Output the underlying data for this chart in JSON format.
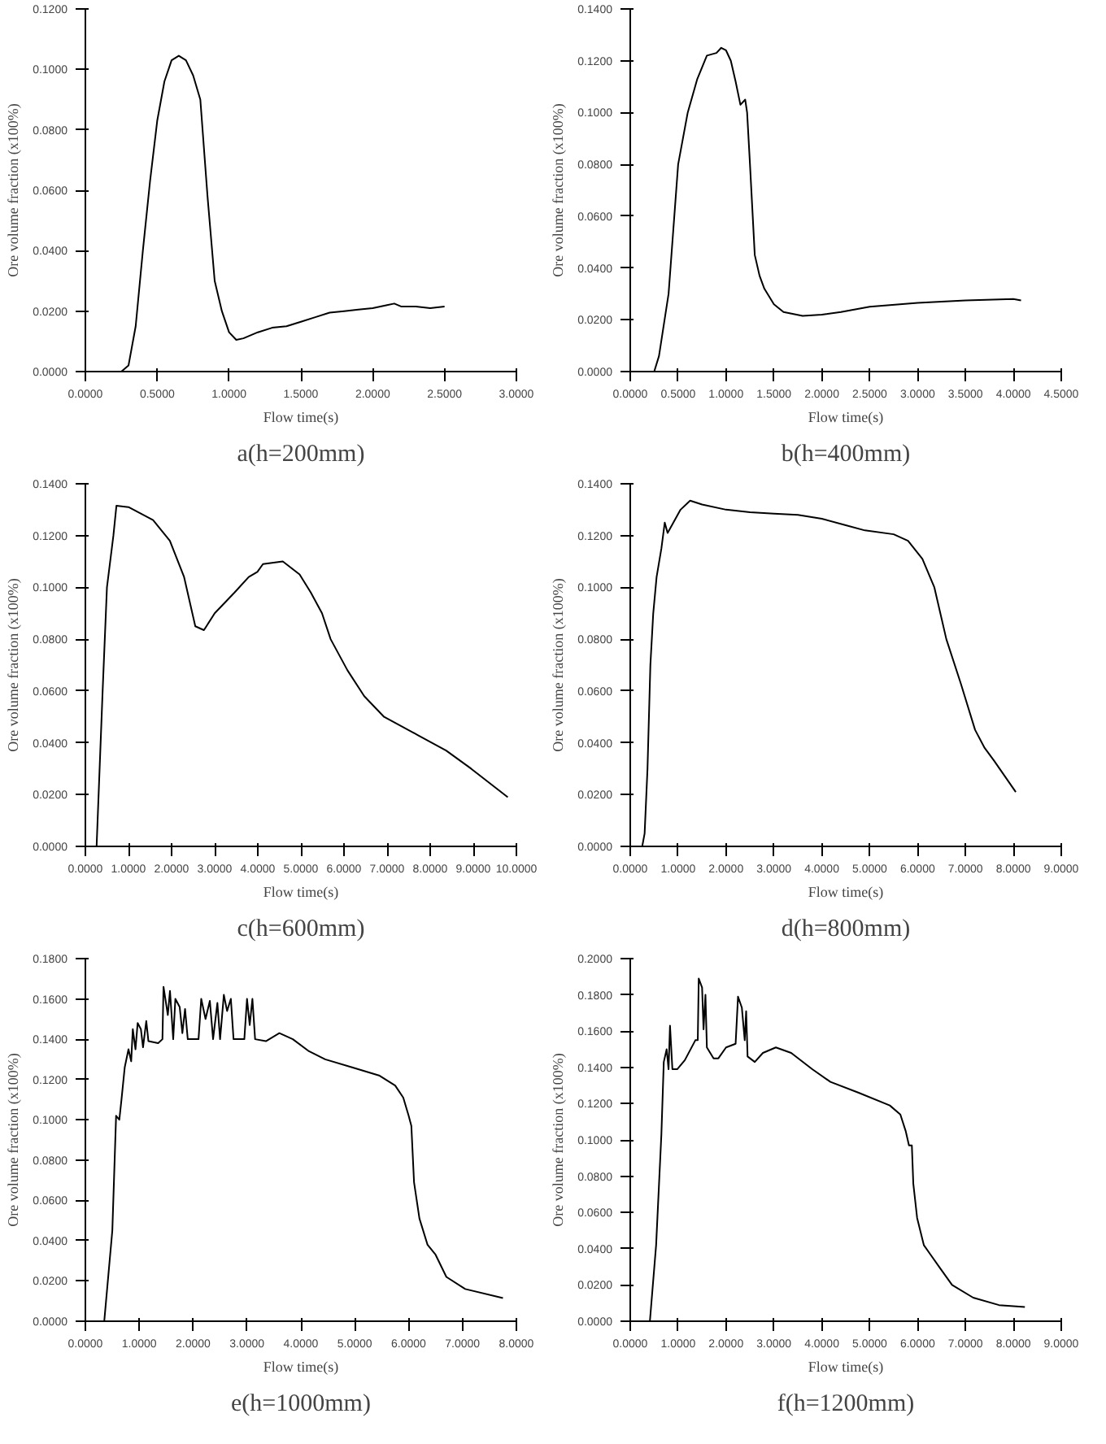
{
  "chart_data": [
    {
      "type": "line",
      "title": "a(h=200mm)",
      "xlabel": "Flow time(s)",
      "ylabel": "Ore volume fraction (x100%)",
      "grid": false,
      "color": "#000000",
      "x": [
        0.25,
        0.3,
        0.35,
        0.4,
        0.45,
        0.5,
        0.55,
        0.6,
        0.65,
        0.7,
        0.75,
        0.8,
        0.85,
        0.9,
        0.95,
        1.0,
        1.05,
        1.1,
        1.2,
        1.3,
        1.4,
        1.5,
        1.6,
        1.7,
        1.8,
        1.9,
        2.0,
        2.1,
        2.15,
        2.2,
        2.3,
        2.4,
        2.5
      ],
      "values": [
        0,
        0.002,
        0.015,
        0.04,
        0.063,
        0.083,
        0.096,
        0.103,
        0.1045,
        0.103,
        0.098,
        0.09,
        0.058,
        0.03,
        0.02,
        0.013,
        0.0105,
        0.011,
        0.013,
        0.0145,
        0.015,
        0.0165,
        0.018,
        0.0195,
        0.02,
        0.0205,
        0.021,
        0.022,
        0.0225,
        0.0215,
        0.0215,
        0.021,
        0.0215
      ],
      "xlim": [
        0,
        3
      ],
      "ylim": [
        0,
        0.12
      ],
      "xticks": [
        {
          "value": 0,
          "label": "0.0000"
        },
        {
          "value": 0.5,
          "label": "0.5000"
        },
        {
          "value": 1,
          "label": "1.0000"
        },
        {
          "value": 1.5,
          "label": "1.5000"
        },
        {
          "value": 2,
          "label": "2.0000"
        },
        {
          "value": 2.5,
          "label": "2.5000"
        },
        {
          "value": 3,
          "label": "3.0000"
        }
      ],
      "yticks": [
        {
          "value": 0,
          "label": "0.0000"
        },
        {
          "value": 0.02,
          "label": "0.0200"
        },
        {
          "value": 0.04,
          "label": "0.0400"
        },
        {
          "value": 0.06,
          "label": "0.0600"
        },
        {
          "value": 0.08,
          "label": "0.0800"
        },
        {
          "value": 0.1,
          "label": "0.1000"
        },
        {
          "value": 0.12,
          "label": "0.1200"
        }
      ]
    },
    {
      "type": "line",
      "title": "b(h=400mm)",
      "xlabel": "Flow time(s)",
      "ylabel": "Ore volume fraction (x100%)",
      "grid": false,
      "color": "#000000",
      "x": [
        0.25,
        0.3,
        0.4,
        0.45,
        0.5,
        0.6,
        0.7,
        0.8,
        0.9,
        0.95,
        1.0,
        1.05,
        1.1,
        1.15,
        1.2,
        1.22,
        1.25,
        1.3,
        1.35,
        1.4,
        1.5,
        1.6,
        1.8,
        2.0,
        2.2,
        2.5,
        3.0,
        3.5,
        4.0,
        4.08
      ],
      "values": [
        0,
        0.006,
        0.03,
        0.055,
        0.08,
        0.1,
        0.113,
        0.122,
        0.123,
        0.125,
        0.124,
        0.12,
        0.112,
        0.103,
        0.105,
        0.1,
        0.08,
        0.045,
        0.037,
        0.032,
        0.026,
        0.023,
        0.0215,
        0.022,
        0.023,
        0.025,
        0.0265,
        0.0275,
        0.028,
        0.0275
      ],
      "xlim": [
        0,
        4.5
      ],
      "ylim": [
        0,
        0.14
      ],
      "xticks": [
        {
          "value": 0,
          "label": "0.0000"
        },
        {
          "value": 0.5,
          "label": "0.5000"
        },
        {
          "value": 1,
          "label": "1.0000"
        },
        {
          "value": 1.5,
          "label": "1.5000"
        },
        {
          "value": 2,
          "label": "2.0000"
        },
        {
          "value": 2.5,
          "label": "2.5000"
        },
        {
          "value": 3,
          "label": "3.0000"
        },
        {
          "value": 3.5,
          "label": "3.5000"
        },
        {
          "value": 4,
          "label": "4.0000"
        },
        {
          "value": 4.5,
          "label": "4.5000"
        }
      ],
      "yticks": [
        {
          "value": 0,
          "label": "0.0000"
        },
        {
          "value": 0.02,
          "label": "0.0200"
        },
        {
          "value": 0.04,
          "label": "0.0400"
        },
        {
          "value": 0.06,
          "label": "0.0600"
        },
        {
          "value": 0.08,
          "label": "0.0800"
        },
        {
          "value": 0.1,
          "label": "0.1000"
        },
        {
          "value": 0.12,
          "label": "0.1200"
        },
        {
          "value": 0.14,
          "label": "0.1400"
        }
      ]
    },
    {
      "type": "line",
      "title": "c(h=600mm)",
      "xlabel": "Flow time(s)",
      "ylabel": "Ore volume fraction (x100%)",
      "grid": false,
      "color": "#000000",
      "x": [
        0.26,
        0.4,
        0.5,
        0.65,
        0.72,
        1.0,
        1.57,
        1.96,
        2.29,
        2.55,
        2.75,
        3.0,
        3.46,
        3.79,
        3.99,
        4.12,
        4.58,
        4.97,
        5.23,
        5.49,
        5.69,
        6.08,
        6.47,
        6.93,
        7.71,
        8.37,
        8.95,
        9.8
      ],
      "values": [
        0,
        0.06,
        0.1,
        0.12,
        0.1315,
        0.131,
        0.126,
        0.118,
        0.104,
        0.085,
        0.0835,
        0.09,
        0.098,
        0.104,
        0.106,
        0.109,
        0.11,
        0.105,
        0.098,
        0.09,
        0.08,
        0.068,
        0.058,
        0.05,
        0.043,
        0.037,
        0.03,
        0.019
      ],
      "xlim": [
        0,
        10
      ],
      "ylim": [
        0,
        0.14
      ],
      "xticks": [
        {
          "value": 0,
          "label": "0.0000"
        },
        {
          "value": 1,
          "label": "1.0000"
        },
        {
          "value": 2,
          "label": "2.0000"
        },
        {
          "value": 3,
          "label": "3.0000"
        },
        {
          "value": 4,
          "label": "4.0000"
        },
        {
          "value": 5,
          "label": "5.0000"
        },
        {
          "value": 6,
          "label": "6.0000"
        },
        {
          "value": 7,
          "label": "7.0000"
        },
        {
          "value": 8,
          "label": "8.0000"
        },
        {
          "value": 9,
          "label": "9.0000"
        },
        {
          "value": 10,
          "label": "10.0000"
        }
      ],
      "yticks": [
        {
          "value": 0,
          "label": "0.0000"
        },
        {
          "value": 0.02,
          "label": "0.0200"
        },
        {
          "value": 0.04,
          "label": "0.0400"
        },
        {
          "value": 0.06,
          "label": "0.0600"
        },
        {
          "value": 0.08,
          "label": "0.0800"
        },
        {
          "value": 0.1,
          "label": "0.1000"
        },
        {
          "value": 0.12,
          "label": "0.1200"
        },
        {
          "value": 0.14,
          "label": "0.1400"
        }
      ]
    },
    {
      "type": "line",
      "title": "d(h=800mm)",
      "xlabel": "Flow time(s)",
      "ylabel": "Ore volume fraction (x100%)",
      "grid": false,
      "color": "#000000",
      "x": [
        0.25,
        0.3,
        0.36,
        0.42,
        0.48,
        0.55,
        0.65,
        0.72,
        0.78,
        0.9,
        1.05,
        1.25,
        1.5,
        2.0,
        2.5,
        3.0,
        3.5,
        4.0,
        4.5,
        4.9,
        5.5,
        5.8,
        6.1,
        6.35,
        6.6,
        6.9,
        7.2,
        7.4,
        7.6,
        8.05
      ],
      "values": [
        0,
        0.005,
        0.03,
        0.07,
        0.09,
        0.104,
        0.115,
        0.125,
        0.121,
        0.125,
        0.13,
        0.1335,
        0.132,
        0.13,
        0.129,
        0.1285,
        0.128,
        0.1265,
        0.124,
        0.122,
        0.1205,
        0.118,
        0.111,
        0.1,
        0.08,
        0.063,
        0.045,
        0.038,
        0.033,
        0.021
      ],
      "xlim": [
        0,
        9
      ],
      "ylim": [
        0,
        0.14
      ],
      "xticks": [
        {
          "value": 0,
          "label": "0.0000"
        },
        {
          "value": 1,
          "label": "1.0000"
        },
        {
          "value": 2,
          "label": "2.0000"
        },
        {
          "value": 3,
          "label": "3.0000"
        },
        {
          "value": 4,
          "label": "4.0000"
        },
        {
          "value": 5,
          "label": "5.0000"
        },
        {
          "value": 6,
          "label": "6.0000"
        },
        {
          "value": 7,
          "label": "7.0000"
        },
        {
          "value": 8,
          "label": "8.0000"
        },
        {
          "value": 9,
          "label": "9.0000"
        }
      ],
      "yticks": [
        {
          "value": 0,
          "label": "0.0000"
        },
        {
          "value": 0.02,
          "label": "0.0200"
        },
        {
          "value": 0.04,
          "label": "0.0400"
        },
        {
          "value": 0.06,
          "label": "0.0600"
        },
        {
          "value": 0.08,
          "label": "0.0800"
        },
        {
          "value": 0.1,
          "label": "0.1000"
        },
        {
          "value": 0.12,
          "label": "0.1200"
        },
        {
          "value": 0.14,
          "label": "0.1400"
        }
      ]
    },
    {
      "type": "line",
      "title": "e(h=1000mm)",
      "xlabel": "Flow time(s)",
      "ylabel": "Ore volume fraction (x100%)",
      "grid": false,
      "color": "#000000",
      "x": [
        0.35,
        0.5,
        0.57,
        0.63,
        0.67,
        0.73,
        0.8,
        0.85,
        0.88,
        0.93,
        0.97,
        1.03,
        1.07,
        1.13,
        1.17,
        1.35,
        1.43,
        1.45,
        1.53,
        1.57,
        1.63,
        1.67,
        1.75,
        1.8,
        1.85,
        1.9,
        2.1,
        2.15,
        2.23,
        2.31,
        2.37,
        2.45,
        2.5,
        2.57,
        2.63,
        2.7,
        2.75,
        2.95,
        3.0,
        3.05,
        3.1,
        3.15,
        3.35,
        3.6,
        3.85,
        4.15,
        4.45,
        4.95,
        5.45,
        5.75,
        5.9,
        6.0,
        6.05,
        6.1,
        6.2,
        6.35,
        6.5,
        6.7,
        7.05,
        7.75
      ],
      "values": [
        0,
        0.045,
        0.102,
        0.1,
        0.11,
        0.126,
        0.135,
        0.129,
        0.145,
        0.135,
        0.148,
        0.145,
        0.136,
        0.149,
        0.139,
        0.138,
        0.14,
        0.166,
        0.152,
        0.164,
        0.14,
        0.16,
        0.156,
        0.143,
        0.155,
        0.14,
        0.14,
        0.16,
        0.15,
        0.159,
        0.14,
        0.158,
        0.14,
        0.162,
        0.154,
        0.16,
        0.14,
        0.14,
        0.16,
        0.147,
        0.16,
        0.14,
        0.139,
        0.143,
        0.14,
        0.134,
        0.13,
        0.126,
        0.122,
        0.117,
        0.111,
        0.102,
        0.097,
        0.069,
        0.051,
        0.038,
        0.033,
        0.022,
        0.016,
        0.0115
      ],
      "xlim": [
        0,
        8
      ],
      "ylim": [
        0,
        0.18
      ],
      "xticks": [
        {
          "value": 0,
          "label": "0.0000"
        },
        {
          "value": 1,
          "label": "1.0000"
        },
        {
          "value": 2,
          "label": "2.0000"
        },
        {
          "value": 3,
          "label": "3.0000"
        },
        {
          "value": 4,
          "label": "4.0000"
        },
        {
          "value": 5,
          "label": "5.0000"
        },
        {
          "value": 6,
          "label": "6.0000"
        },
        {
          "value": 7,
          "label": "7.0000"
        },
        {
          "value": 8,
          "label": "8.0000"
        }
      ],
      "yticks": [
        {
          "value": 0,
          "label": "0.0000"
        },
        {
          "value": 0.02,
          "label": "0.0200"
        },
        {
          "value": 0.04,
          "label": "0.0400"
        },
        {
          "value": 0.06,
          "label": "0.0600"
        },
        {
          "value": 0.08,
          "label": "0.0800"
        },
        {
          "value": 0.1,
          "label": "0.1000"
        },
        {
          "value": 0.12,
          "label": "0.1200"
        },
        {
          "value": 0.14,
          "label": "0.1400"
        },
        {
          "value": 0.16,
          "label": "0.1600"
        },
        {
          "value": 0.18,
          "label": "0.1800"
        }
      ]
    },
    {
      "type": "line",
      "title": "f(h=1200mm)",
      "xlabel": "Flow time(s)",
      "ylabel": "Ore volume fraction (x100%)",
      "grid": false,
      "color": "#000000",
      "x": [
        0.41,
        0.54,
        0.65,
        0.7,
        0.76,
        0.8,
        0.83,
        0.88,
        0.98,
        1.14,
        1.36,
        1.41,
        1.43,
        1.5,
        1.53,
        1.57,
        1.6,
        1.74,
        1.84,
        2.0,
        2.2,
        2.25,
        2.33,
        2.39,
        2.42,
        2.45,
        2.6,
        2.77,
        3.04,
        3.36,
        3.8,
        4.18,
        4.77,
        5.42,
        5.64,
        5.75,
        5.82,
        5.88,
        5.91,
        5.99,
        6.13,
        6.29,
        6.45,
        6.72,
        7.16,
        7.7,
        8.24
      ],
      "values": [
        0,
        0.042,
        0.103,
        0.143,
        0.15,
        0.139,
        0.163,
        0.139,
        0.139,
        0.144,
        0.155,
        0.155,
        0.189,
        0.184,
        0.161,
        0.18,
        0.151,
        0.145,
        0.145,
        0.151,
        0.153,
        0.179,
        0.173,
        0.155,
        0.171,
        0.146,
        0.143,
        0.148,
        0.151,
        0.148,
        0.139,
        0.132,
        0.126,
        0.119,
        0.114,
        0.105,
        0.097,
        0.097,
        0.076,
        0.057,
        0.042,
        0.036,
        0.03,
        0.02,
        0.013,
        0.0089,
        0.0078
      ],
      "xlim": [
        0,
        9
      ],
      "ylim": [
        0,
        0.2
      ],
      "xticks": [
        {
          "value": 0,
          "label": "0.0000"
        },
        {
          "value": 1,
          "label": "1.0000"
        },
        {
          "value": 2,
          "label": "2.0000"
        },
        {
          "value": 3,
          "label": "3.0000"
        },
        {
          "value": 4,
          "label": "4.0000"
        },
        {
          "value": 5,
          "label": "5.0000"
        },
        {
          "value": 6,
          "label": "6.0000"
        },
        {
          "value": 7,
          "label": "7.0000"
        },
        {
          "value": 8,
          "label": "8.0000"
        },
        {
          "value": 9,
          "label": "9.0000"
        }
      ],
      "yticks": [
        {
          "value": 0,
          "label": "0.0000"
        },
        {
          "value": 0.02,
          "label": "0.0200"
        },
        {
          "value": 0.04,
          "label": "0.0400"
        },
        {
          "value": 0.06,
          "label": "0.0600"
        },
        {
          "value": 0.08,
          "label": "0.0800"
        },
        {
          "value": 0.1,
          "label": "0.1000"
        },
        {
          "value": 0.12,
          "label": "0.1200"
        },
        {
          "value": 0.14,
          "label": "0.1400"
        },
        {
          "value": 0.16,
          "label": "0.1600"
        },
        {
          "value": 0.18,
          "label": "0.1800"
        },
        {
          "value": 0.2,
          "label": "0.2000"
        }
      ]
    }
  ]
}
